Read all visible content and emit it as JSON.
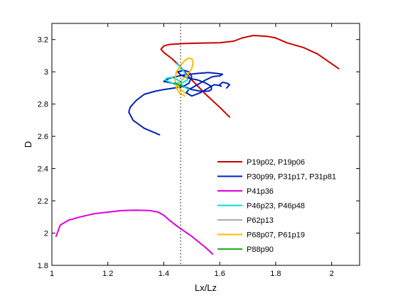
{
  "chart_data": {
    "type": "line",
    "title": "",
    "xlabel": "Lx/Lz",
    "ylabel": "D",
    "xlim": [
      1.0,
      2.1
    ],
    "ylim": [
      1.8,
      3.3
    ],
    "x_ticks": [
      1,
      1.2,
      1.4,
      1.6,
      1.8,
      2
    ],
    "x_tick_labels": [
      "1",
      "1.2",
      "1.4",
      "1.6",
      "1.8",
      "2"
    ],
    "y_ticks": [
      1.8,
      2,
      2.2,
      2.4,
      2.6,
      2.8,
      3,
      3.2
    ],
    "y_tick_labels": [
      "1.8",
      "2",
      "2.2",
      "2.4",
      "2.6",
      "2.8",
      "3",
      "3.2"
    ],
    "vertical_reference_line": 1.46,
    "legend_position": "lower-right",
    "grid": false,
    "series": [
      {
        "name": "P19p02, P19p06",
        "color": "#cc0000",
        "x": [
          1.635,
          1.6,
          1.55,
          1.5,
          1.46,
          1.43,
          1.4,
          1.39,
          1.4,
          1.42,
          1.47,
          1.53,
          1.6,
          1.65,
          1.68,
          1.72,
          1.77,
          1.8,
          1.84,
          1.9,
          1.95,
          2.0,
          2.025
        ],
        "y": [
          2.72,
          2.78,
          2.86,
          2.95,
          3.03,
          3.08,
          3.12,
          3.14,
          3.16,
          3.17,
          3.175,
          3.178,
          3.18,
          3.19,
          3.21,
          3.225,
          3.22,
          3.21,
          3.18,
          3.15,
          3.11,
          3.05,
          3.02
        ]
      },
      {
        "name": "P30p99, P31p17, P31p81",
        "color": "#0022bb",
        "x": [
          1.385,
          1.33,
          1.29,
          1.275,
          1.28,
          1.3,
          1.33,
          1.37,
          1.4,
          1.44,
          1.47,
          1.49,
          1.5,
          1.49,
          1.47,
          1.45,
          1.46,
          1.49,
          1.52,
          1.55,
          1.57,
          1.57,
          1.56,
          1.53,
          1.5,
          1.47,
          1.43,
          1.4,
          1.42,
          1.47,
          1.52,
          1.56,
          1.59,
          1.61,
          1.6,
          1.575,
          1.55,
          1.52,
          1.49,
          1.48,
          1.5,
          1.53,
          1.56,
          1.58,
          1.6,
          1.605,
          1.6,
          1.61,
          1.625,
          1.635,
          1.625
        ],
        "y": [
          2.61,
          2.65,
          2.7,
          2.75,
          2.78,
          2.82,
          2.86,
          2.88,
          2.89,
          2.9,
          2.91,
          2.93,
          2.97,
          3.0,
          3.01,
          3.0,
          2.98,
          2.96,
          2.95,
          2.93,
          2.91,
          2.89,
          2.88,
          2.88,
          2.89,
          2.91,
          2.93,
          2.94,
          2.96,
          2.98,
          2.99,
          2.995,
          2.99,
          2.985,
          2.975,
          2.97,
          2.95,
          2.92,
          2.89,
          2.87,
          2.85,
          2.87,
          2.9,
          2.92,
          2.915,
          2.91,
          2.92,
          2.935,
          2.93,
          2.92,
          2.9
        ]
      },
      {
        "name": "P41p36",
        "color": "#dd00dd",
        "x": [
          1.015,
          1.03,
          1.06,
          1.1,
          1.15,
          1.2,
          1.25,
          1.3,
          1.35,
          1.38,
          1.4,
          1.42,
          1.45,
          1.5,
          1.55,
          1.575
        ],
        "y": [
          1.98,
          2.05,
          2.08,
          2.1,
          2.12,
          2.13,
          2.14,
          2.142,
          2.14,
          2.13,
          2.11,
          2.08,
          2.04,
          1.98,
          1.91,
          1.87
        ]
      },
      {
        "name": "P46p23, P46p48",
        "color": "#00dddd",
        "x": [
          1.49,
          1.47,
          1.46,
          1.45,
          1.44,
          1.425,
          1.41,
          1.405,
          1.415,
          1.43,
          1.45,
          1.47,
          1.485,
          1.48,
          1.465,
          1.455,
          1.445
        ],
        "y": [
          2.89,
          2.91,
          2.93,
          2.95,
          2.96,
          2.965,
          2.96,
          2.95,
          2.94,
          2.93,
          2.93,
          2.935,
          2.95,
          2.98,
          3.02,
          3.04,
          3.05
        ]
      },
      {
        "name": "P62p13",
        "color": "#aaaaaa",
        "x": [],
        "y": []
      },
      {
        "name": "P68p07, P61p19",
        "color": "#ffbb00",
        "x": [
          1.475,
          1.455,
          1.445,
          1.44,
          1.445,
          1.46,
          1.475,
          1.49,
          1.5,
          1.505,
          1.5,
          1.485,
          1.465,
          1.455,
          1.45,
          1.46,
          1.475
        ],
        "y": [
          2.85,
          2.87,
          2.9,
          2.95,
          3.0,
          3.04,
          3.07,
          3.085,
          3.08,
          3.06,
          3.02,
          2.98,
          2.95,
          2.93,
          2.91,
          2.89,
          2.87
        ]
      },
      {
        "name": "P88p90",
        "color": "#22aa22",
        "x": [
          1.44,
          1.45,
          1.46,
          1.47,
          1.47
        ],
        "y": [
          2.93,
          2.92,
          2.915,
          2.91,
          2.905
        ]
      }
    ]
  }
}
